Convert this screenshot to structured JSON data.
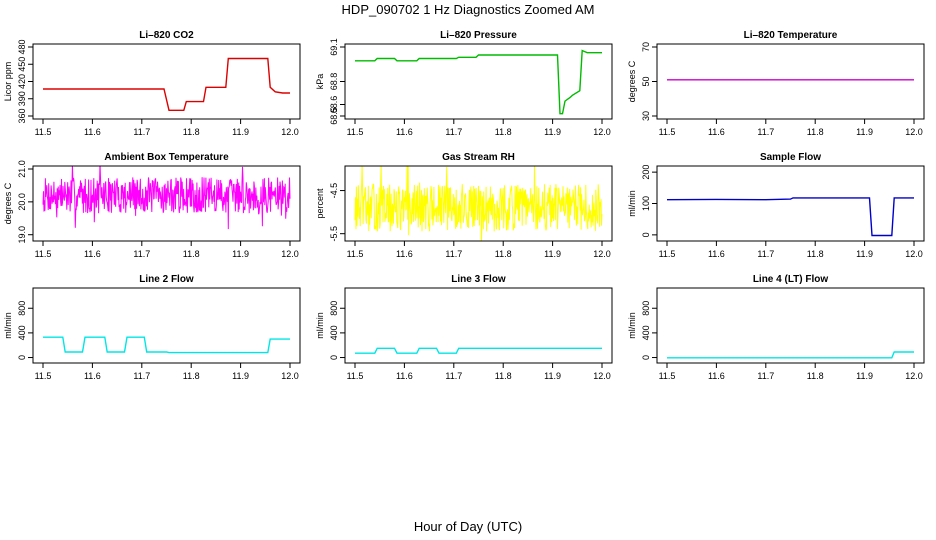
{
  "figure": {
    "title": "HDP_090702  1 Hz Diagnostics Zoomed AM",
    "xlabel": "Hour of Day (UTC)"
  },
  "chart_data": [
    {
      "type": "line",
      "title": "Li–820 CO2",
      "ylabel": "Licor ppm",
      "color": "#dd0000",
      "xlim": [
        11.5,
        12.0
      ],
      "ylim": [
        360,
        480
      ],
      "xticks": [
        "11.5",
        "11.6",
        "11.7",
        "11.8",
        "11.9",
        "12.0"
      ],
      "yticks": [
        "360",
        "390",
        "420",
        "450",
        "480"
      ],
      "series": [
        {
          "x": [
            11.5,
            11.6,
            11.7,
            11.745,
            11.755,
            11.785,
            11.79,
            11.825,
            11.83,
            11.87,
            11.875,
            11.955,
            11.96,
            11.97,
            11.985,
            12.0
          ],
          "y": [
            407,
            407,
            407,
            407,
            370,
            370,
            385,
            385,
            410,
            410,
            460,
            460,
            410,
            402,
            400,
            400
          ]
        }
      ]
    },
    {
      "type": "line",
      "title": "Li–820 Pressure",
      "ylabel": "kPa",
      "color": "#00bb00",
      "xlim": [
        11.5,
        12.0
      ],
      "ylim": [
        68.5,
        69.1
      ],
      "xticks": [
        "11.5",
        "11.6",
        "11.7",
        "11.8",
        "11.9",
        "12.0"
      ],
      "yticks": [
        "68.5",
        "68.6",
        "68.8",
        "69.1"
      ],
      "series": [
        {
          "x": [
            11.5,
            11.54,
            11.545,
            11.58,
            11.585,
            11.625,
            11.63,
            11.705,
            11.71,
            11.745,
            11.75,
            11.91,
            11.915,
            11.92,
            11.925,
            11.935,
            11.94,
            11.955,
            11.96,
            11.965,
            11.97,
            12.0
          ],
          "y": [
            68.98,
            68.98,
            69.0,
            69.0,
            68.98,
            68.98,
            69.0,
            69.0,
            69.01,
            69.01,
            69.03,
            69.03,
            68.52,
            68.52,
            68.63,
            68.66,
            68.68,
            68.72,
            69.07,
            69.06,
            69.05,
            69.05
          ]
        }
      ]
    },
    {
      "type": "line",
      "title": "Li–820 Temperature",
      "ylabel": "degrees C",
      "color": "#cc00cc",
      "xlim": [
        11.5,
        12.0
      ],
      "ylim": [
        30,
        70
      ],
      "xticks": [
        "11.5",
        "11.6",
        "11.7",
        "11.8",
        "11.9",
        "12.0"
      ],
      "yticks": [
        "30",
        "50",
        "70"
      ],
      "series": [
        {
          "x": [
            11.5,
            12.0
          ],
          "y": [
            51,
            51
          ]
        }
      ]
    },
    {
      "type": "line",
      "title": "Ambient Box Temperature",
      "ylabel": "degrees C",
      "color": "#ff00ff",
      "noise": {
        "mean": 20.2,
        "amplitude": 0.55,
        "seed": 7
      },
      "xlim": [
        11.5,
        12.0
      ],
      "ylim": [
        18.9,
        21.0
      ],
      "xticks": [
        "11.5",
        "11.6",
        "11.7",
        "11.8",
        "11.9",
        "12.0"
      ],
      "yticks": [
        "19.0",
        "20.0",
        "21.0"
      ],
      "series": [
        {
          "x": [
            11.5,
            12.0
          ],
          "y": [
            20.2,
            20.2
          ]
        }
      ]
    },
    {
      "type": "line",
      "title": "Gas Stream RH",
      "ylabel": "percent",
      "color": "#ffff00",
      "noise": {
        "mean": -4.9,
        "amplitude": 0.55,
        "seed": 13
      },
      "xlim": [
        11.5,
        12.0
      ],
      "ylim": [
        -5.6,
        -4.0
      ],
      "xticks": [
        "11.5",
        "11.6",
        "11.7",
        "11.8",
        "11.9",
        "12.0"
      ],
      "yticks": [
        "-5.5",
        "-4.5"
      ],
      "series": [
        {
          "x": [
            11.5,
            12.0
          ],
          "y": [
            -4.9,
            -4.9
          ]
        }
      ]
    },
    {
      "type": "line",
      "title": "Sample Flow",
      "ylabel": "ml/min",
      "color": "#0000cc",
      "xlim": [
        11.5,
        12.0
      ],
      "ylim": [
        -10,
        210
      ],
      "xticks": [
        "11.5",
        "11.6",
        "11.7",
        "11.8",
        "11.9",
        "12.0"
      ],
      "yticks": [
        "0",
        "100",
        "200"
      ],
      "series": [
        {
          "x": [
            11.5,
            11.6,
            11.7,
            11.75,
            11.755,
            11.91,
            11.915,
            11.955,
            11.96,
            12.0
          ],
          "y": [
            112,
            113,
            112,
            114,
            118,
            118,
            -2,
            -2,
            118,
            118
          ]
        }
      ]
    },
    {
      "type": "line",
      "title": "Line 2 Flow",
      "ylabel": "ml/min",
      "color": "#00e6e6",
      "xlim": [
        11.5,
        12.0
      ],
      "ylim": [
        -40,
        1080
      ],
      "xticks": [
        "11.5",
        "11.6",
        "11.7",
        "11.8",
        "11.9",
        "12.0"
      ],
      "yticks": [
        "0",
        "400",
        "800"
      ],
      "series": [
        {
          "x": [
            11.5,
            11.54,
            11.545,
            11.58,
            11.585,
            11.625,
            11.63,
            11.665,
            11.67,
            11.705,
            11.71,
            11.75,
            11.755,
            11.955,
            11.96,
            12.0
          ],
          "y": [
            330,
            330,
            90,
            90,
            330,
            330,
            90,
            90,
            330,
            330,
            90,
            90,
            80,
            80,
            300,
            300
          ]
        }
      ]
    },
    {
      "type": "line",
      "title": "Line 3 Flow",
      "ylabel": "ml/min",
      "color": "#00e6e6",
      "xlim": [
        11.5,
        12.0
      ],
      "ylim": [
        -40,
        1080
      ],
      "xticks": [
        "11.5",
        "11.6",
        "11.7",
        "11.8",
        "11.9",
        "12.0"
      ],
      "yticks": [
        "0",
        "400",
        "800"
      ],
      "series": [
        {
          "x": [
            11.5,
            11.54,
            11.545,
            11.58,
            11.585,
            11.625,
            11.63,
            11.665,
            11.67,
            11.705,
            11.71,
            12.0
          ],
          "y": [
            70,
            70,
            150,
            150,
            70,
            70,
            150,
            150,
            70,
            70,
            150,
            150
          ]
        }
      ]
    },
    {
      "type": "line",
      "title": "Line 4 (LT) Flow",
      "ylabel": "ml/min",
      "color": "#00e6e6",
      "xlim": [
        11.5,
        12.0
      ],
      "ylim": [
        -40,
        1080
      ],
      "xticks": [
        "11.5",
        "11.6",
        "11.7",
        "11.8",
        "11.9",
        "12.0"
      ],
      "yticks": [
        "0",
        "400",
        "800"
      ],
      "series": [
        {
          "x": [
            11.5,
            11.955,
            11.96,
            12.0
          ],
          "y": [
            -5,
            -5,
            90,
            90
          ]
        }
      ]
    }
  ]
}
